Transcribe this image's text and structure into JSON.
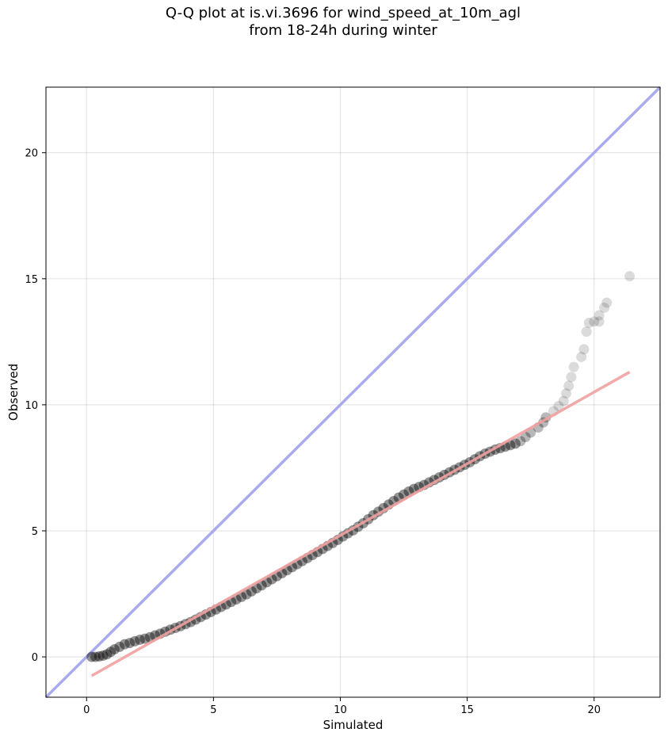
{
  "chart_data": {
    "type": "scatter",
    "title_lines": [
      "Q-Q plot at is.vi.3696 for wind_speed_at_10m_agl",
      "from 18-24h during winter"
    ],
    "xlabel": "Simulated",
    "ylabel": "Observed",
    "xlim": [
      -1.6,
      22.6
    ],
    "ylim": [
      -1.6,
      22.6
    ],
    "xticks": [
      0,
      5,
      10,
      15,
      20
    ],
    "yticks": [
      0,
      5,
      10,
      15,
      20
    ],
    "grid": true,
    "reference_line": {
      "from": [
        -1.6,
        -1.6
      ],
      "to": [
        22.6,
        22.6
      ],
      "color": "#aaaaee"
    },
    "fit_line": {
      "from": [
        0.2,
        -0.75
      ],
      "to": [
        21.4,
        11.3
      ],
      "color": "#f0a0a0"
    },
    "point_color": "#000000",
    "points": [
      [
        0.2,
        0.0
      ],
      [
        0.35,
        0.0
      ],
      [
        0.5,
        0.02
      ],
      [
        0.65,
        0.05
      ],
      [
        0.8,
        0.1
      ],
      [
        0.95,
        0.2
      ],
      [
        1.1,
        0.3
      ],
      [
        1.3,
        0.4
      ],
      [
        1.5,
        0.5
      ],
      [
        1.7,
        0.55
      ],
      [
        1.9,
        0.62
      ],
      [
        2.1,
        0.68
      ],
      [
        2.3,
        0.72
      ],
      [
        2.5,
        0.78
      ],
      [
        2.7,
        0.85
      ],
      [
        2.9,
        0.92
      ],
      [
        3.1,
        1.0
      ],
      [
        3.3,
        1.08
      ],
      [
        3.5,
        1.15
      ],
      [
        3.7,
        1.22
      ],
      [
        3.9,
        1.3
      ],
      [
        4.1,
        1.38
      ],
      [
        4.3,
        1.48
      ],
      [
        4.5,
        1.58
      ],
      [
        4.7,
        1.68
      ],
      [
        4.9,
        1.78
      ],
      [
        5.1,
        1.88
      ],
      [
        5.3,
        1.98
      ],
      [
        5.5,
        2.08
      ],
      [
        5.7,
        2.18
      ],
      [
        5.9,
        2.28
      ],
      [
        6.1,
        2.38
      ],
      [
        6.3,
        2.48
      ],
      [
        6.5,
        2.6
      ],
      [
        6.7,
        2.72
      ],
      [
        6.9,
        2.84
      ],
      [
        7.1,
        2.96
      ],
      [
        7.3,
        3.08
      ],
      [
        7.5,
        3.2
      ],
      [
        7.7,
        3.32
      ],
      [
        7.9,
        3.44
      ],
      [
        8.1,
        3.56
      ],
      [
        8.3,
        3.68
      ],
      [
        8.5,
        3.8
      ],
      [
        8.7,
        3.92
      ],
      [
        8.9,
        4.04
      ],
      [
        9.1,
        4.16
      ],
      [
        9.3,
        4.28
      ],
      [
        9.5,
        4.4
      ],
      [
        9.7,
        4.52
      ],
      [
        9.9,
        4.64
      ],
      [
        10.1,
        4.78
      ],
      [
        10.3,
        4.9
      ],
      [
        10.5,
        5.02
      ],
      [
        10.7,
        5.16
      ],
      [
        10.9,
        5.3
      ],
      [
        11.1,
        5.46
      ],
      [
        11.3,
        5.62
      ],
      [
        11.5,
        5.76
      ],
      [
        11.7,
        5.9
      ],
      [
        11.9,
        6.04
      ],
      [
        12.1,
        6.18
      ],
      [
        12.3,
        6.32
      ],
      [
        12.5,
        6.44
      ],
      [
        12.7,
        6.56
      ],
      [
        12.9,
        6.66
      ],
      [
        13.1,
        6.74
      ],
      [
        13.3,
        6.82
      ],
      [
        13.5,
        6.92
      ],
      [
        13.7,
        7.02
      ],
      [
        13.9,
        7.12
      ],
      [
        14.1,
        7.22
      ],
      [
        14.3,
        7.32
      ],
      [
        14.5,
        7.42
      ],
      [
        14.7,
        7.52
      ],
      [
        14.9,
        7.62
      ],
      [
        15.1,
        7.72
      ],
      [
        15.3,
        7.84
      ],
      [
        15.5,
        7.96
      ],
      [
        15.7,
        8.06
      ],
      [
        15.9,
        8.14
      ],
      [
        16.1,
        8.22
      ],
      [
        16.3,
        8.28
      ],
      [
        16.5,
        8.34
      ],
      [
        16.7,
        8.4
      ],
      [
        16.9,
        8.46
      ],
      [
        17.1,
        8.56
      ],
      [
        17.3,
        8.72
      ],
      [
        17.5,
        8.9
      ],
      [
        17.8,
        9.1
      ],
      [
        18.0,
        9.3
      ],
      [
        18.1,
        9.5
      ],
      [
        18.4,
        9.75
      ],
      [
        18.6,
        9.95
      ],
      [
        18.8,
        10.15
      ],
      [
        18.9,
        10.45
      ],
      [
        19.0,
        10.75
      ],
      [
        19.1,
        11.1
      ],
      [
        19.2,
        11.5
      ],
      [
        19.5,
        11.9
      ],
      [
        19.6,
        12.2
      ],
      [
        19.7,
        12.9
      ],
      [
        19.8,
        13.25
      ],
      [
        20.0,
        13.3
      ],
      [
        20.2,
        13.3
      ],
      [
        20.2,
        13.55
      ],
      [
        20.4,
        13.85
      ],
      [
        20.5,
        14.05
      ],
      [
        21.4,
        15.1
      ]
    ]
  }
}
